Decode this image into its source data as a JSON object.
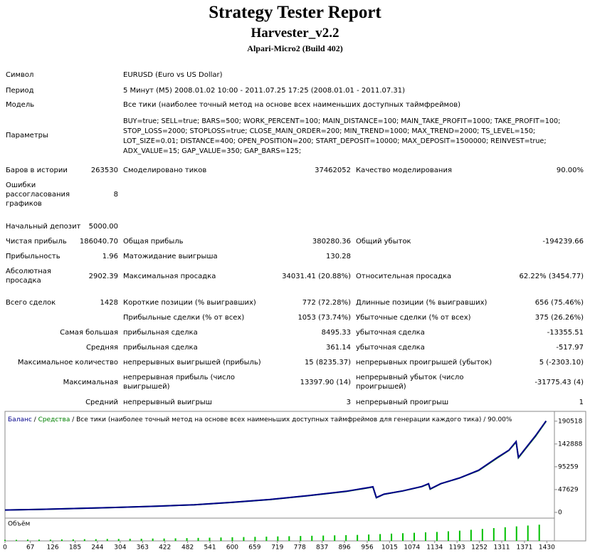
{
  "header": {
    "title": "Strategy Tester Report",
    "subtitle": "Harvester_v2.2",
    "build": "Alpari-Micro2 (Build 402)"
  },
  "info": [
    {
      "label": "Символ",
      "value": "EURUSD (Euro vs US Dollar)"
    },
    {
      "label": "Период",
      "value": "5 Минут (M5) 2008.01.02 10:00 - 2011.07.25 17:25 (2008.01.01 - 2011.07.31)"
    },
    {
      "label": "Модель",
      "value": "Все тики (наиболее точный метод на основе всех наименьших доступных таймфреймов)"
    }
  ],
  "parameters": {
    "label": "Параметры",
    "lines": [
      "BUY=true; SELL=true; BARS=500; WORK_PERCENT=100; MAIN_DISTANCE=100; MAIN_TAKE_PROFIT=1000; TAKE_PROFIT=100;",
      "STOP_LOSS=2000; STOPLOSS=true; CLOSE_MAIN_ORDER=200; MIN_TREND=1000; MAX_TREND=2000; TS_LEVEL=150;",
      "LOT_SIZE=0.01; DISTANCE=400; OPEN_POSITION=200; START_DEPOSIT=10000; MAX_DEPOSIT=1500000; REINVEST=true;",
      "ADX_VALUE=15; GAP_VALUE=350; GAP_BARS=125;"
    ]
  },
  "stats": [
    [
      "Баров в истории",
      "263530",
      "Смоделировано тиков",
      "37462052",
      "Качество моделирования",
      "90.00%"
    ],
    [
      "Ошибки рассогласования графиков",
      "8",
      null,
      null,
      null,
      null
    ],
    [
      "Начальный депозит",
      "5000.00",
      null,
      null,
      null,
      null
    ],
    [
      "Чистая прибыль",
      "186040.70",
      "Общая прибыль",
      "380280.36",
      "Общий убыток",
      "-194239.66"
    ],
    [
      "Прибыльность",
      "1.96",
      "Матожидание выигрыша",
      "130.28",
      null,
      null
    ],
    [
      "Абсолютная просадка",
      "2902.39",
      "Максимальная просадка",
      "34031.41 (20.88%)",
      "Относительная просадка",
      "62.22% (3454.77)"
    ],
    [
      "Всего сделок",
      "1428",
      "Короткие позиции (% выигравших)",
      "772 (72.28%)",
      "Длинные позиции (% выигравших)",
      "656 (75.46%)"
    ],
    [
      null,
      null,
      "Прибыльные сделки (% от всех)",
      "1053 (73.74%)",
      "Убыточные сделки (% от всех)",
      "375 (26.26%)"
    ],
    [
      "Самая большая",
      null,
      "прибыльная сделка",
      "8495.33",
      "убыточная сделка",
      "-13355.51"
    ],
    [
      "Средняя",
      null,
      "прибыльная сделка",
      "361.14",
      "убыточная сделка",
      "-517.97"
    ],
    [
      "Максимальное количество",
      null,
      "непрерывных выигрышей (прибыль)",
      "15 (8235.37)",
      "непрерывных проигрышей (убыток)",
      "5 (-2303.10)"
    ],
    [
      "Максимальная",
      null,
      "непрерывная прибыль (число выигрышей)",
      "13397.90 (14)",
      "непрерывный убыток (число проигрышей)",
      "-31775.43 (4)"
    ],
    [
      "Средний",
      null,
      "непрерывный выигрыш",
      "3",
      "непрерывный проигрыш",
      "1"
    ]
  ],
  "chart_data": {
    "type": "line",
    "separator": " / ",
    "model_note": "Все тики (наиболее точный метод на основе всех наименьших доступных таймфреймов для генерации каждого тика)",
    "quality": "90.00%",
    "x": [
      0,
      100,
      200,
      300,
      400,
      500,
      600,
      700,
      800,
      900,
      960,
      971,
      980,
      1000,
      1050,
      1100,
      1118,
      1122,
      1150,
      1200,
      1250,
      1300,
      1330,
      1349,
      1355,
      1380,
      1400,
      1428
    ],
    "series": [
      {
        "name": "Баланс",
        "color": "#00008b",
        "values": [
          5000,
          6500,
          8500,
          10500,
          13000,
          16000,
          21000,
          27000,
          35000,
          44000,
          52000,
          53500,
          31000,
          38000,
          45000,
          54000,
          60000,
          49000,
          60000,
          72000,
          88000,
          115000,
          130000,
          148000,
          115000,
          140000,
          160000,
          191040
        ]
      },
      {
        "name": "Средства",
        "color": "#008000",
        "values": [
          5000,
          6400,
          8400,
          10400,
          12900,
          15900,
          20800,
          26800,
          34800,
          43800,
          51500,
          53000,
          30500,
          37800,
          44800,
          53800,
          59500,
          48500,
          59800,
          71800,
          87500,
          114000,
          129500,
          147000,
          114000,
          139000,
          159000,
          190500
        ]
      }
    ],
    "xlim": [
      0,
      1450
    ],
    "xticks": [
      0,
      67,
      126,
      185,
      244,
      304,
      363,
      422,
      482,
      541,
      600,
      659,
      719,
      778,
      837,
      896,
      956,
      1015,
      1074,
      1134,
      1193,
      1252,
      1311,
      1371,
      1430
    ],
    "ylim": [
      -12000,
      211000
    ],
    "yticks": [
      0,
      47629,
      95259,
      142888,
      190518
    ],
    "volume": {
      "label": "Объём",
      "color": "#00c000",
      "ylim": [
        0,
        10
      ],
      "x": [
        0,
        30,
        60,
        90,
        120,
        150,
        180,
        210,
        240,
        270,
        300,
        330,
        360,
        390,
        420,
        450,
        480,
        510,
        540,
        570,
        600,
        630,
        660,
        690,
        720,
        750,
        780,
        810,
        840,
        870,
        900,
        930,
        960,
        990,
        1020,
        1050,
        1080,
        1110,
        1140,
        1170,
        1200,
        1230,
        1260,
        1290,
        1320,
        1350,
        1380,
        1410
      ],
      "values": [
        0.5,
        0.5,
        0.6,
        0.6,
        0.6,
        0.7,
        0.7,
        0.8,
        0.8,
        0.9,
        0.9,
        1,
        1,
        1.1,
        1.1,
        1.2,
        1.3,
        1.4,
        1.5,
        1.6,
        1.7,
        1.8,
        1.9,
        2,
        2.1,
        2.2,
        2.3,
        2.4,
        2.5,
        2.6,
        2.7,
        2.8,
        3,
        3.2,
        3.4,
        3.6,
        3.8,
        4,
        4.2,
        4.5,
        4.8,
        5.2,
        5.6,
        6,
        6.4,
        6.8,
        7.2,
        7.6
      ]
    }
  }
}
